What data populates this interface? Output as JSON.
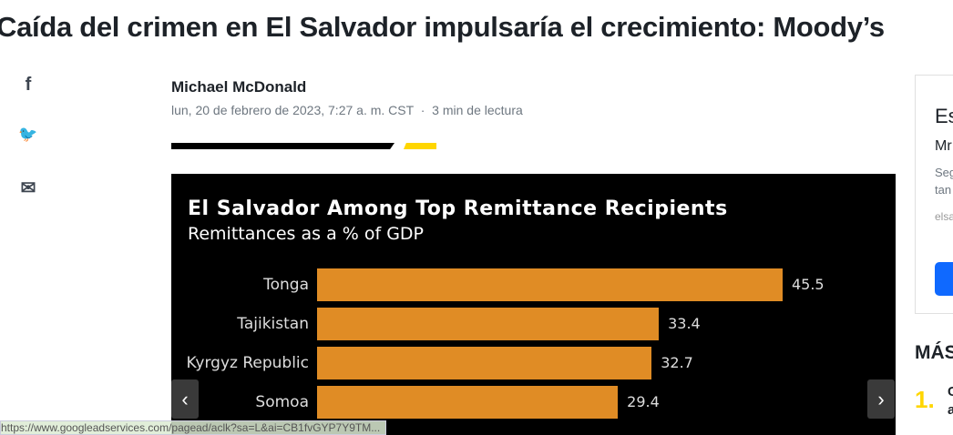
{
  "article": {
    "title": "Caída del crimen en El Salvador impulsaría el crecimiento: Moody’s",
    "author": "Michael McDonald",
    "date": "lun, 20 de febrero de 2023, 7:27 a. m. CST",
    "read_time": "3  min de lectura",
    "separator": "·"
  },
  "share": {
    "facebook": "f",
    "twitter": "🐦",
    "email": "✉"
  },
  "chart_data": {
    "type": "bar",
    "title": "El Salvador Among Top Remittance Recipients",
    "subtitle": "Remittances as a % of GDP",
    "categories": [
      "Tonga",
      "Tajikistan",
      "Kyrgyz Republic",
      "Somoa"
    ],
    "values": [
      45.5,
      33.4,
      32.7,
      29.4
    ],
    "bar_color": "#e08c25",
    "background": "#000000"
  },
  "carousel": {
    "prev": "‹",
    "next": "›"
  },
  "sidebar": {
    "card_title": "Es",
    "card_sub": "Mr",
    "card_text1": "Seg",
    "card_text2": "tan",
    "card_link": "elsa",
    "button_color": "#0f69ff",
    "mas": "MÁS",
    "item_num": "1.",
    "item_text1": "C",
    "item_text2": "a"
  },
  "status_url": "https://www.googleadservices.com/pagead/aclk?sa=L&ai=CB1fvGYP7Y9TM..."
}
